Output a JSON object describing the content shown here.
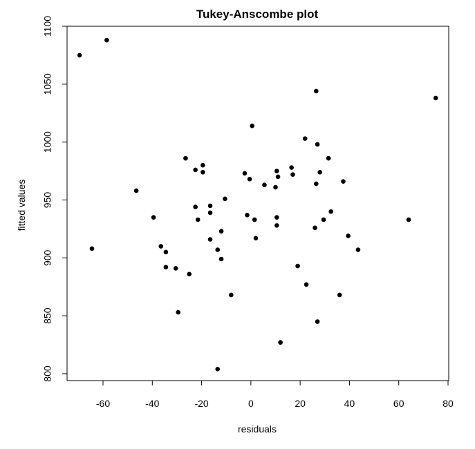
{
  "chart_data": {
    "type": "scatter",
    "title": "Tukey-Anscombe plot",
    "xlabel": "residuals",
    "ylabel": "fitted values",
    "xlim": [
      -75,
      80
    ],
    "ylim": [
      795,
      1100
    ],
    "xticks": [
      -60,
      -40,
      -20,
      0,
      20,
      40,
      60,
      80
    ],
    "yticks": [
      800,
      850,
      900,
      950,
      1000,
      1050,
      1100
    ],
    "grid": false,
    "legend": "none",
    "point_color": "#000000",
    "points": [
      [
        -69.5,
        1075
      ],
      [
        -58.5,
        1088
      ],
      [
        -64.5,
        908
      ],
      [
        -46.5,
        958
      ],
      [
        -39.5,
        935
      ],
      [
        -36.5,
        910
      ],
      [
        -34.5,
        905
      ],
      [
        -34.5,
        892
      ],
      [
        -30.5,
        891
      ],
      [
        -29.5,
        853
      ],
      [
        -26.5,
        986
      ],
      [
        -25,
        886
      ],
      [
        -22.5,
        976
      ],
      [
        -22.5,
        944
      ],
      [
        -21.5,
        933
      ],
      [
        -19.5,
        980
      ],
      [
        -19.5,
        974
      ],
      [
        -16.5,
        945
      ],
      [
        -16.5,
        939
      ],
      [
        -16.5,
        916
      ],
      [
        -13.5,
        907
      ],
      [
        -13.5,
        804
      ],
      [
        -12,
        923
      ],
      [
        -12,
        899
      ],
      [
        -10.5,
        951
      ],
      [
        -8,
        868
      ],
      [
        -2.5,
        973
      ],
      [
        -1.5,
        937
      ],
      [
        -0.5,
        968
      ],
      [
        0.5,
        1014
      ],
      [
        1.5,
        933
      ],
      [
        2,
        917
      ],
      [
        5.5,
        963
      ],
      [
        10,
        961
      ],
      [
        10.5,
        975
      ],
      [
        10.5,
        935
      ],
      [
        10.5,
        928
      ],
      [
        11,
        970
      ],
      [
        12,
        827
      ],
      [
        16.5,
        978
      ],
      [
        17,
        972
      ],
      [
        19,
        893
      ],
      [
        22,
        1003
      ],
      [
        22.5,
        877
      ],
      [
        26,
        926
      ],
      [
        26.5,
        1044
      ],
      [
        26.5,
        964
      ],
      [
        27,
        998
      ],
      [
        27,
        845
      ],
      [
        28,
        974
      ],
      [
        29.5,
        933
      ],
      [
        31.5,
        986
      ],
      [
        32.5,
        940
      ],
      [
        36,
        868
      ],
      [
        37.5,
        966
      ],
      [
        39.5,
        919
      ],
      [
        43.5,
        907
      ],
      [
        64,
        933
      ],
      [
        75,
        1038
      ]
    ]
  }
}
